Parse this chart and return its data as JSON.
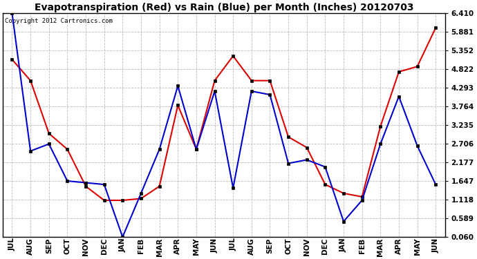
{
  "title": "Evapotranspiration (Red) vs Rain (Blue) per Month (Inches) 20120703",
  "copyright": "Copyright 2012 Cartronics.com",
  "x_labels": [
    "JUL",
    "AUG",
    "SEP",
    "OCT",
    "NOV",
    "DEC",
    "JAN",
    "FEB",
    "MAR",
    "APR",
    "MAY",
    "JUN",
    "JUL",
    "AUG",
    "SEP",
    "OCT",
    "NOV",
    "DEC",
    "JAN",
    "FEB",
    "MAR",
    "APR",
    "MAY",
    "JUN"
  ],
  "red_data": [
    5.1,
    4.5,
    3.0,
    2.55,
    1.5,
    1.1,
    1.1,
    1.15,
    1.5,
    3.8,
    2.55,
    4.5,
    5.2,
    4.5,
    4.5,
    2.9,
    2.6,
    1.55,
    1.3,
    1.2,
    3.2,
    4.75,
    4.9,
    6.0
  ],
  "blue_data": [
    6.41,
    2.5,
    2.7,
    1.65,
    1.6,
    1.55,
    0.06,
    1.3,
    2.55,
    4.35,
    2.55,
    4.2,
    1.45,
    4.2,
    4.1,
    2.15,
    2.25,
    2.05,
    0.5,
    1.1,
    2.7,
    4.05,
    2.65,
    1.55
  ],
  "ylim_min": 0.06,
  "ylim_max": 6.41,
  "yticks": [
    0.06,
    0.589,
    1.118,
    1.647,
    2.177,
    2.706,
    3.235,
    3.764,
    4.293,
    4.822,
    5.352,
    5.881,
    6.41
  ],
  "bg_color": "#ffffff",
  "grid_color": "#bbbbbb",
  "red_color": "#dd0000",
  "blue_color": "#0000cc",
  "title_fontsize": 10,
  "copyright_fontsize": 6.5
}
